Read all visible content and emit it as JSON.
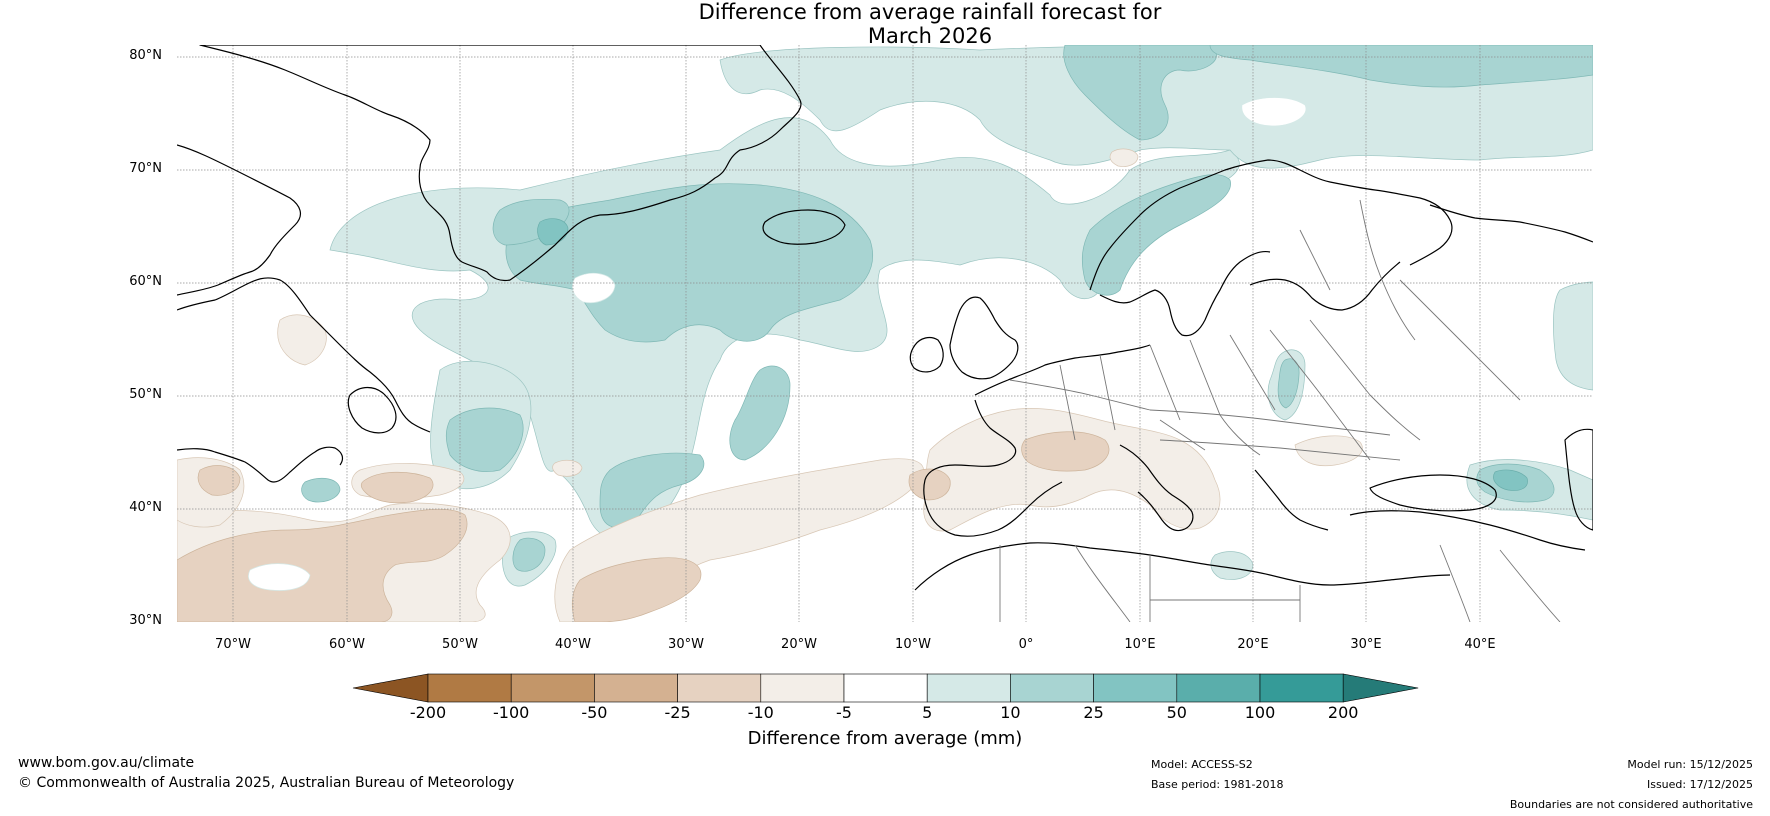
{
  "title": {
    "line1": "Difference from average rainfall forecast for",
    "line2": "March 2026"
  },
  "map": {
    "lat_labels": [
      "80°N",
      "70°N",
      "60°N",
      "50°N",
      "40°N",
      "30°N"
    ],
    "lon_labels": [
      "70°W",
      "60°W",
      "50°W",
      "40°W",
      "30°W",
      "20°W",
      "10°W",
      "0°",
      "10°E",
      "20°E",
      "30°E",
      "40°E"
    ],
    "lat_range": [
      30,
      81
    ],
    "lon_range": [
      -75,
      50
    ]
  },
  "colorbar": {
    "ticks": [
      "-200",
      "-100",
      "-50",
      "-25",
      "-10",
      "-5",
      "5",
      "10",
      "25",
      "50",
      "100",
      "200"
    ],
    "colors": [
      "#8c5523",
      "#b07a44",
      "#c39669",
      "#d4b191",
      "#e6d2c1",
      "#f3eee8",
      "#ffffff",
      "#d5e9e7",
      "#a8d4d2",
      "#82c4c2",
      "#5aaeab",
      "#359b98",
      "#257b78"
    ],
    "label": "Difference from average (mm)"
  },
  "footer": {
    "website": "www.bom.gov.au/climate",
    "copyright": "© Commonwealth of Australia 2025, Australian Bureau of Meteorology",
    "model": "Model: ACCESS-S2",
    "base_period": "Base period: 1981-2018",
    "model_run": "Model run: 15/12/2025",
    "issued": "Issued: 17/12/2025",
    "disclaimer": "Boundaries are not considered authoritative"
  }
}
